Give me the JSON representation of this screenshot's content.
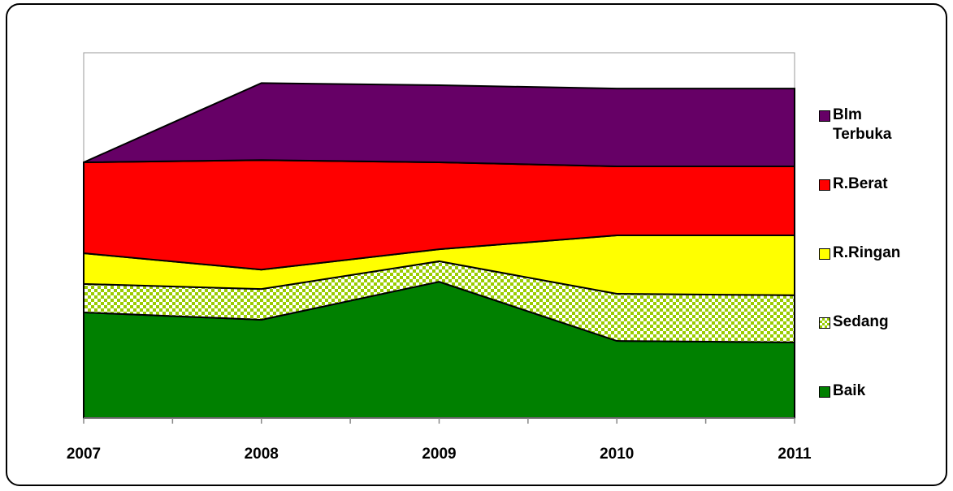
{
  "chart_data": {
    "type": "stacked_area",
    "categories": [
      "2007",
      "2008",
      "2009",
      "2010",
      "2011"
    ],
    "ylim": [
      0,
      100
    ],
    "series": [
      {
        "name": "Baik",
        "color": "#008000",
        "values": [
          28.9,
          26.9,
          37.3,
          21.1,
          20.7
        ]
      },
      {
        "name": "Sedang",
        "color": "#99cc00",
        "pattern": "checker",
        "values": [
          7.8,
          8.4,
          5.6,
          12.9,
          12.9
        ]
      },
      {
        "name": "R.Ringan",
        "color": "#ffff00",
        "values": [
          8.4,
          5.3,
          3.3,
          16.0,
          16.4
        ]
      },
      {
        "name": "R.Berat",
        "color": "#ff0000",
        "values": [
          24.9,
          30.0,
          23.8,
          18.9,
          18.9
        ]
      },
      {
        "name": "Blm Terbuka",
        "color": "#660066",
        "values": [
          0,
          21.1,
          21.1,
          21.3,
          21.3
        ]
      }
    ]
  }
}
